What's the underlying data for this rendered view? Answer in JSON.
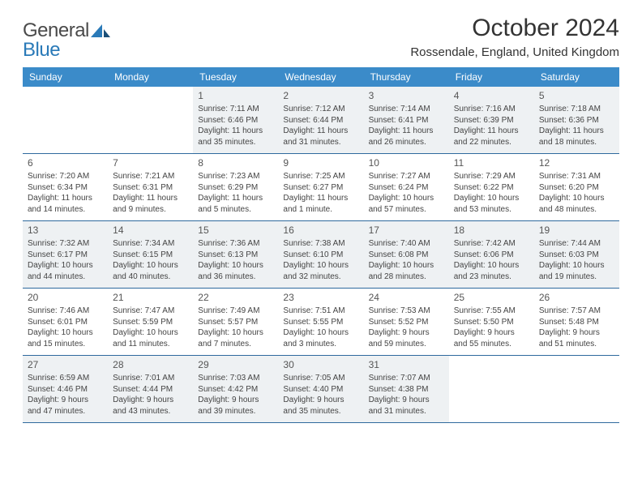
{
  "logo": {
    "text1": "General",
    "text2": "Blue"
  },
  "title": "October 2024",
  "location": "Rossendale, England, United Kingdom",
  "weekdays": [
    "Sunday",
    "Monday",
    "Tuesday",
    "Wednesday",
    "Thursday",
    "Friday",
    "Saturday"
  ],
  "header_bg": "#3b8bc9",
  "header_text": "#ffffff",
  "border_color": "#2f6a9e",
  "shaded_bg": "#eef1f3",
  "font_family": "Arial, Helvetica, sans-serif",
  "title_fontsize": 30,
  "location_fontsize": 15,
  "weekday_fontsize": 12,
  "cell_fontsize": 10,
  "days": [
    {
      "num": "",
      "sunrise": "",
      "sunset": "",
      "daylight": "",
      "shaded": false
    },
    {
      "num": "",
      "sunrise": "",
      "sunset": "",
      "daylight": "",
      "shaded": false
    },
    {
      "num": "1",
      "sunrise": "Sunrise: 7:11 AM",
      "sunset": "Sunset: 6:46 PM",
      "daylight": "Daylight: 11 hours and 35 minutes.",
      "shaded": true
    },
    {
      "num": "2",
      "sunrise": "Sunrise: 7:12 AM",
      "sunset": "Sunset: 6:44 PM",
      "daylight": "Daylight: 11 hours and 31 minutes.",
      "shaded": true
    },
    {
      "num": "3",
      "sunrise": "Sunrise: 7:14 AM",
      "sunset": "Sunset: 6:41 PM",
      "daylight": "Daylight: 11 hours and 26 minutes.",
      "shaded": true
    },
    {
      "num": "4",
      "sunrise": "Sunrise: 7:16 AM",
      "sunset": "Sunset: 6:39 PM",
      "daylight": "Daylight: 11 hours and 22 minutes.",
      "shaded": true
    },
    {
      "num": "5",
      "sunrise": "Sunrise: 7:18 AM",
      "sunset": "Sunset: 6:36 PM",
      "daylight": "Daylight: 11 hours and 18 minutes.",
      "shaded": true
    },
    {
      "num": "6",
      "sunrise": "Sunrise: 7:20 AM",
      "sunset": "Sunset: 6:34 PM",
      "daylight": "Daylight: 11 hours and 14 minutes.",
      "shaded": false
    },
    {
      "num": "7",
      "sunrise": "Sunrise: 7:21 AM",
      "sunset": "Sunset: 6:31 PM",
      "daylight": "Daylight: 11 hours and 9 minutes.",
      "shaded": false
    },
    {
      "num": "8",
      "sunrise": "Sunrise: 7:23 AM",
      "sunset": "Sunset: 6:29 PM",
      "daylight": "Daylight: 11 hours and 5 minutes.",
      "shaded": false
    },
    {
      "num": "9",
      "sunrise": "Sunrise: 7:25 AM",
      "sunset": "Sunset: 6:27 PM",
      "daylight": "Daylight: 11 hours and 1 minute.",
      "shaded": false
    },
    {
      "num": "10",
      "sunrise": "Sunrise: 7:27 AM",
      "sunset": "Sunset: 6:24 PM",
      "daylight": "Daylight: 10 hours and 57 minutes.",
      "shaded": false
    },
    {
      "num": "11",
      "sunrise": "Sunrise: 7:29 AM",
      "sunset": "Sunset: 6:22 PM",
      "daylight": "Daylight: 10 hours and 53 minutes.",
      "shaded": false
    },
    {
      "num": "12",
      "sunrise": "Sunrise: 7:31 AM",
      "sunset": "Sunset: 6:20 PM",
      "daylight": "Daylight: 10 hours and 48 minutes.",
      "shaded": false
    },
    {
      "num": "13",
      "sunrise": "Sunrise: 7:32 AM",
      "sunset": "Sunset: 6:17 PM",
      "daylight": "Daylight: 10 hours and 44 minutes.",
      "shaded": true
    },
    {
      "num": "14",
      "sunrise": "Sunrise: 7:34 AM",
      "sunset": "Sunset: 6:15 PM",
      "daylight": "Daylight: 10 hours and 40 minutes.",
      "shaded": true
    },
    {
      "num": "15",
      "sunrise": "Sunrise: 7:36 AM",
      "sunset": "Sunset: 6:13 PM",
      "daylight": "Daylight: 10 hours and 36 minutes.",
      "shaded": true
    },
    {
      "num": "16",
      "sunrise": "Sunrise: 7:38 AM",
      "sunset": "Sunset: 6:10 PM",
      "daylight": "Daylight: 10 hours and 32 minutes.",
      "shaded": true
    },
    {
      "num": "17",
      "sunrise": "Sunrise: 7:40 AM",
      "sunset": "Sunset: 6:08 PM",
      "daylight": "Daylight: 10 hours and 28 minutes.",
      "shaded": true
    },
    {
      "num": "18",
      "sunrise": "Sunrise: 7:42 AM",
      "sunset": "Sunset: 6:06 PM",
      "daylight": "Daylight: 10 hours and 23 minutes.",
      "shaded": true
    },
    {
      "num": "19",
      "sunrise": "Sunrise: 7:44 AM",
      "sunset": "Sunset: 6:03 PM",
      "daylight": "Daylight: 10 hours and 19 minutes.",
      "shaded": true
    },
    {
      "num": "20",
      "sunrise": "Sunrise: 7:46 AM",
      "sunset": "Sunset: 6:01 PM",
      "daylight": "Daylight: 10 hours and 15 minutes.",
      "shaded": false
    },
    {
      "num": "21",
      "sunrise": "Sunrise: 7:47 AM",
      "sunset": "Sunset: 5:59 PM",
      "daylight": "Daylight: 10 hours and 11 minutes.",
      "shaded": false
    },
    {
      "num": "22",
      "sunrise": "Sunrise: 7:49 AM",
      "sunset": "Sunset: 5:57 PM",
      "daylight": "Daylight: 10 hours and 7 minutes.",
      "shaded": false
    },
    {
      "num": "23",
      "sunrise": "Sunrise: 7:51 AM",
      "sunset": "Sunset: 5:55 PM",
      "daylight": "Daylight: 10 hours and 3 minutes.",
      "shaded": false
    },
    {
      "num": "24",
      "sunrise": "Sunrise: 7:53 AM",
      "sunset": "Sunset: 5:52 PM",
      "daylight": "Daylight: 9 hours and 59 minutes.",
      "shaded": false
    },
    {
      "num": "25",
      "sunrise": "Sunrise: 7:55 AM",
      "sunset": "Sunset: 5:50 PM",
      "daylight": "Daylight: 9 hours and 55 minutes.",
      "shaded": false
    },
    {
      "num": "26",
      "sunrise": "Sunrise: 7:57 AM",
      "sunset": "Sunset: 5:48 PM",
      "daylight": "Daylight: 9 hours and 51 minutes.",
      "shaded": false
    },
    {
      "num": "27",
      "sunrise": "Sunrise: 6:59 AM",
      "sunset": "Sunset: 4:46 PM",
      "daylight": "Daylight: 9 hours and 47 minutes.",
      "shaded": true
    },
    {
      "num": "28",
      "sunrise": "Sunrise: 7:01 AM",
      "sunset": "Sunset: 4:44 PM",
      "daylight": "Daylight: 9 hours and 43 minutes.",
      "shaded": true
    },
    {
      "num": "29",
      "sunrise": "Sunrise: 7:03 AM",
      "sunset": "Sunset: 4:42 PM",
      "daylight": "Daylight: 9 hours and 39 minutes.",
      "shaded": true
    },
    {
      "num": "30",
      "sunrise": "Sunrise: 7:05 AM",
      "sunset": "Sunset: 4:40 PM",
      "daylight": "Daylight: 9 hours and 35 minutes.",
      "shaded": true
    },
    {
      "num": "31",
      "sunrise": "Sunrise: 7:07 AM",
      "sunset": "Sunset: 4:38 PM",
      "daylight": "Daylight: 9 hours and 31 minutes.",
      "shaded": true
    },
    {
      "num": "",
      "sunrise": "",
      "sunset": "",
      "daylight": "",
      "shaded": false
    },
    {
      "num": "",
      "sunrise": "",
      "sunset": "",
      "daylight": "",
      "shaded": false
    }
  ]
}
